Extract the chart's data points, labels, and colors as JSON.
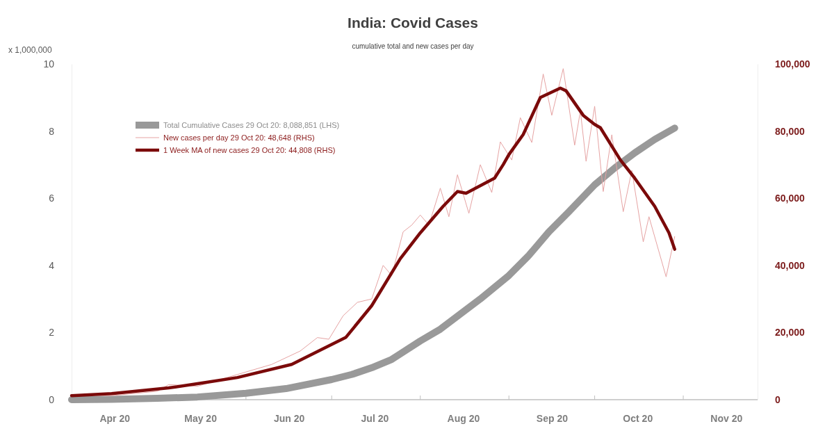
{
  "chart_data": {
    "type": "line",
    "title": "India: Covid Cases",
    "subtitle": "cumulative total and new cases per day",
    "ylabel": "x 1,000,000",
    "xlim": [
      "2020-04-01",
      "2020-11-27"
    ],
    "xticks": [
      {
        "value": "2020-04-16",
        "label": "Apr 20"
      },
      {
        "value": "2020-05-01",
        "label": null
      },
      {
        "value": "2020-05-16",
        "label": "May 20"
      },
      {
        "value": "2020-06-01",
        "label": null
      },
      {
        "value": "2020-06-16",
        "label": "Jun 20"
      },
      {
        "value": "2020-07-01",
        "label": null
      },
      {
        "value": "2020-07-16",
        "label": "Jul 20"
      },
      {
        "value": "2020-08-01",
        "label": null
      },
      {
        "value": "2020-08-16",
        "label": "Aug 20"
      },
      {
        "value": "2020-09-01",
        "label": null
      },
      {
        "value": "2020-09-16",
        "label": "Sep 20"
      },
      {
        "value": "2020-10-01",
        "label": null
      },
      {
        "value": "2020-10-16",
        "label": "Oct 20"
      },
      {
        "value": "2020-11-01",
        "label": null
      },
      {
        "value": "2020-11-16",
        "label": "Nov 20"
      }
    ],
    "ylim": [
      0,
      10
    ],
    "yticks": [
      0,
      2,
      4,
      6,
      8,
      10
    ],
    "y2lim": [
      0,
      100000
    ],
    "y2ticks": [
      0,
      {
        "value": 20000,
        "label": "20,000"
      },
      {
        "value": 40000,
        "label": "40,000"
      },
      {
        "value": 60000,
        "label": "60,000"
      },
      {
        "value": 80000,
        "label": "80,000"
      },
      {
        "value": 100000,
        "label": "100,000"
      }
    ],
    "grid": false,
    "legend": "top left",
    "marker": "none",
    "line_style": "solid",
    "series": [
      {
        "name": "Total Cumulative Cases 29 Oct 20: 8,088,851 (LHS)",
        "color": "#999999",
        "axis": "y",
        "x": [
          "2020-04-01",
          "2020-04-15",
          "2020-05-01",
          "2020-05-15",
          "2020-06-01",
          "2020-06-15",
          "2020-07-01",
          "2020-07-08",
          "2020-07-15",
          "2020-07-22",
          "2020-08-01",
          "2020-08-08",
          "2020-08-15",
          "2020-08-22",
          "2020-09-01",
          "2020-09-08",
          "2020-09-15",
          "2020-09-22",
          "2020-10-01",
          "2020-10-08",
          "2020-10-15",
          "2020-10-22",
          "2020-10-29"
        ],
        "values": [
          0.0,
          0.01,
          0.04,
          0.08,
          0.19,
          0.33,
          0.6,
          0.75,
          0.95,
          1.2,
          1.75,
          2.1,
          2.55,
          3.0,
          3.7,
          4.3,
          5.0,
          5.6,
          6.4,
          6.9,
          7.35,
          7.75,
          8.09
        ]
      },
      {
        "name": "New cases per day 29 Oct 20: 48,648 (RHS)",
        "color": "#e6a3a3",
        "axis": "y2",
        "x": [
          "2020-04-01",
          "2020-04-15",
          "2020-05-01",
          "2020-05-05",
          "2020-05-15",
          "2020-05-29",
          "2020-06-10",
          "2020-06-20",
          "2020-06-26",
          "2020-06-30",
          "2020-07-05",
          "2020-07-10",
          "2020-07-15",
          "2020-07-19",
          "2020-07-22",
          "2020-07-26",
          "2020-07-29",
          "2020-08-01",
          "2020-08-04",
          "2020-08-08",
          "2020-08-11",
          "2020-08-14",
          "2020-08-18",
          "2020-08-22",
          "2020-08-26",
          "2020-08-29",
          "2020-09-02",
          "2020-09-05",
          "2020-09-09",
          "2020-09-13",
          "2020-09-16",
          "2020-09-20",
          "2020-09-24",
          "2020-09-26",
          "2020-09-28",
          "2020-10-01",
          "2020-10-04",
          "2020-10-07",
          "2020-10-11",
          "2020-10-14",
          "2020-10-18",
          "2020-10-20",
          "2020-10-26",
          "2020-10-29"
        ],
        "values": [
          1500,
          1200,
          2500,
          4500,
          4000,
          7500,
          10500,
          14500,
          18500,
          18000,
          25000,
          29000,
          30000,
          40000,
          37000,
          50000,
          52000,
          55000,
          52000,
          63000,
          54500,
          67000,
          55500,
          70000,
          61700,
          76800,
          71400,
          84000,
          76600,
          97000,
          84700,
          98600,
          75800,
          86000,
          71000,
          87400,
          62000,
          78900,
          56000,
          68300,
          47000,
          54500,
          36600,
          48600
        ]
      },
      {
        "name": "1 Week MA of new cases 29 Oct 20: 44,808 (RHS)",
        "color": "#7b0a0a",
        "axis": "y2",
        "x": [
          "2020-04-01",
          "2020-04-15",
          "2020-05-05",
          "2020-05-17",
          "2020-05-29",
          "2020-06-17",
          "2020-07-06",
          "2020-07-15",
          "2020-07-25",
          "2020-08-01",
          "2020-08-09",
          "2020-08-14",
          "2020-08-17",
          "2020-08-27",
          "2020-08-30",
          "2020-09-01",
          "2020-09-06",
          "2020-09-12",
          "2020-09-19",
          "2020-09-21",
          "2020-09-27",
          "2020-10-01",
          "2020-10-03",
          "2020-10-10",
          "2020-10-15",
          "2020-10-22",
          "2020-10-27",
          "2020-10-29"
        ],
        "values": [
          1200,
          1800,
          3500,
          5000,
          6600,
          10500,
          18600,
          28000,
          42000,
          49700,
          57600,
          62000,
          61500,
          66000,
          70000,
          73000,
          79000,
          90000,
          92800,
          92000,
          84700,
          82000,
          81000,
          71400,
          66000,
          57600,
          49700,
          44808
        ]
      }
    ]
  }
}
